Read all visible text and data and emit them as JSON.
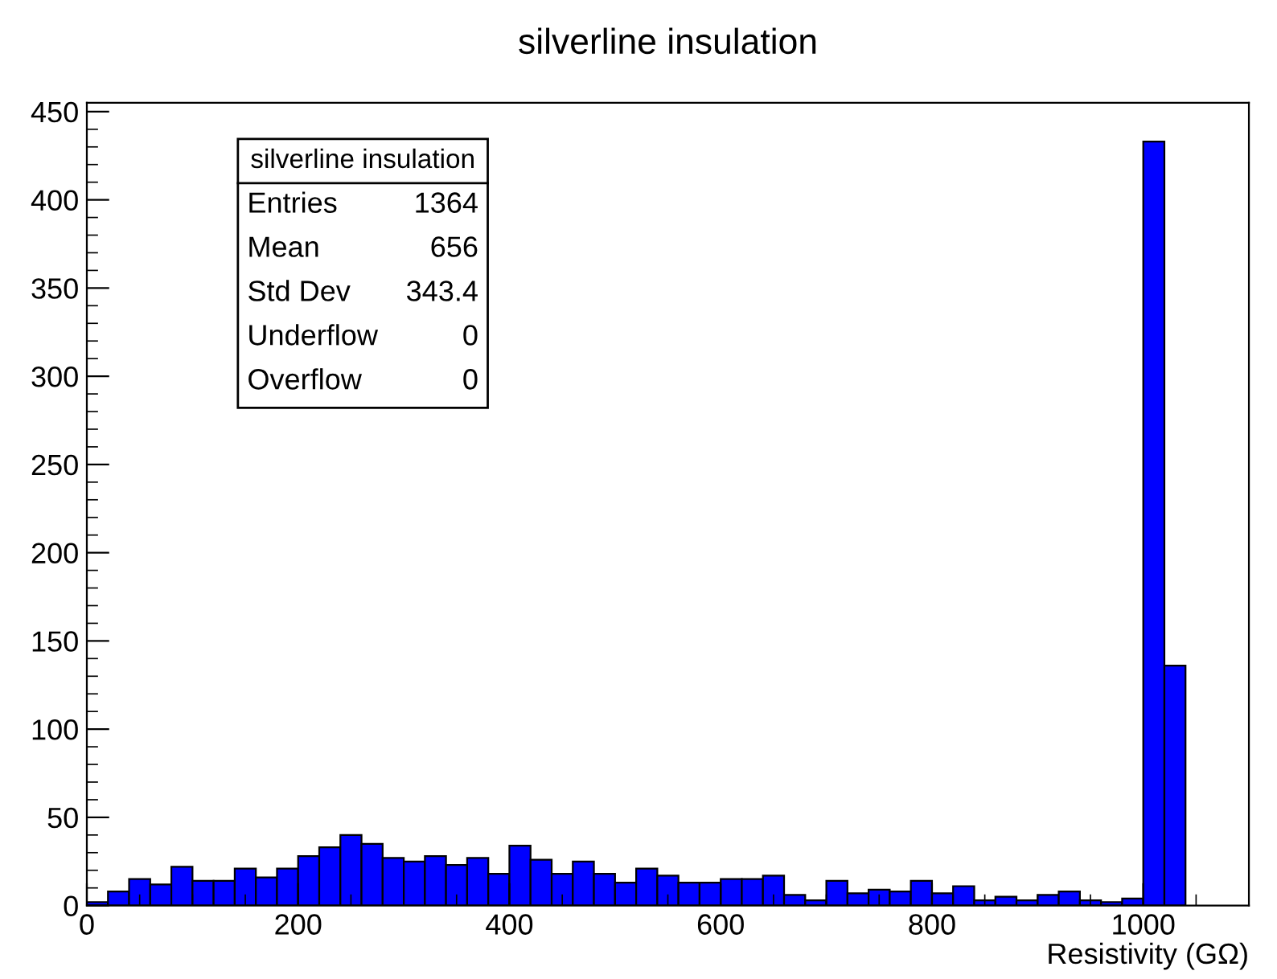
{
  "chart_data": {
    "type": "histogram",
    "title": "silverline insulation",
    "xlabel": "Resistivity (GΩ)",
    "bins": [
      0,
      20,
      40,
      60,
      80,
      100,
      120,
      140,
      160,
      180,
      200,
      220,
      240,
      260,
      280,
      300,
      320,
      340,
      360,
      380,
      400,
      420,
      440,
      460,
      480,
      500,
      520,
      540,
      560,
      580,
      600,
      620,
      640,
      660,
      680,
      700,
      720,
      740,
      760,
      780,
      800,
      820,
      840,
      860,
      880,
      900,
      920,
      940,
      960,
      980,
      1000,
      1020,
      1040
    ],
    "values": [
      2,
      8,
      15,
      12,
      22,
      14,
      14,
      21,
      16,
      21,
      28,
      33,
      40,
      35,
      27,
      25,
      28,
      23,
      27,
      18,
      34,
      26,
      18,
      25,
      18,
      13,
      21,
      17,
      13,
      13,
      15,
      15,
      17,
      6,
      3,
      14,
      7,
      9,
      8,
      14,
      7,
      11,
      3,
      5,
      3,
      6,
      8,
      3,
      2,
      4,
      433,
      136
    ],
    "color": "#0000ff",
    "xlim": [
      0,
      1100
    ],
    "ylim": [
      0,
      455
    ],
    "xticks": [
      0,
      200,
      400,
      600,
      800,
      1000
    ],
    "yticks": [
      0,
      50,
      100,
      150,
      200,
      250,
      300,
      350,
      400,
      450
    ],
    "grid": false,
    "legend": false,
    "annotations": [
      "silverline insulation",
      "Entries",
      "1364",
      "Mean",
      "656",
      "Std Dev",
      "343.4",
      "Underflow",
      "0",
      "Overflow",
      "0"
    ]
  }
}
